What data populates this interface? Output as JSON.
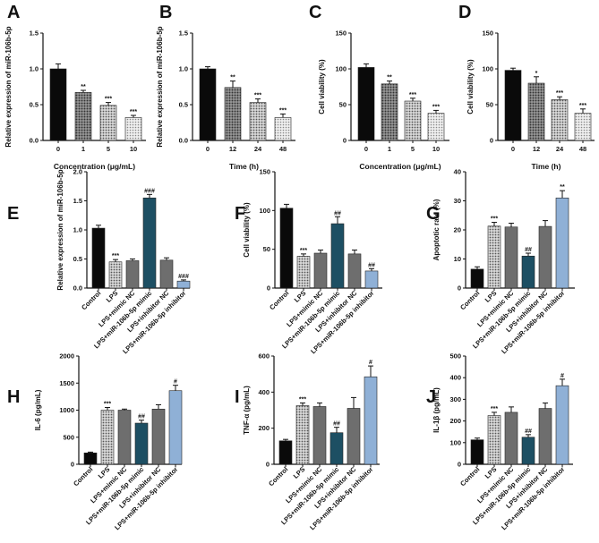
{
  "colors": {
    "black": "#0a0a0a",
    "dotted": "#8e8e8e",
    "dark_dotted": "#6a6a6a",
    "light_dotted": "#c4c4c4",
    "teal": "#1d4f63",
    "gray": "#6e6e6e",
    "blue": "#8fb0d6",
    "axis": "#111111"
  },
  "chart_data": [
    {
      "panel": "A",
      "type": "bar",
      "ylabel": "Relative expression of miR-106b-5p",
      "xlabel": "Concentration (μg/mL)",
      "categories": [
        "0",
        "1",
        "5",
        "10"
      ],
      "values": [
        1.0,
        0.67,
        0.49,
        0.32
      ],
      "errors": [
        0.07,
        0.03,
        0.04,
        0.03
      ],
      "significance": [
        "",
        "**",
        "***",
        "***"
      ],
      "fills": [
        "black",
        "dark_dotted",
        "dotted",
        "light_dotted"
      ],
      "ylim": [
        0,
        1.5
      ],
      "yticks": [
        "0.0",
        "0.5",
        "1.0",
        "1.5"
      ],
      "rotate_labels": false
    },
    {
      "panel": "B",
      "type": "bar",
      "ylabel": "Relative expression of miR-106b-5p",
      "xlabel": "Time (h)",
      "categories": [
        "0",
        "12",
        "24",
        "48"
      ],
      "values": [
        1.0,
        0.74,
        0.53,
        0.32
      ],
      "errors": [
        0.03,
        0.09,
        0.05,
        0.05
      ],
      "significance": [
        "",
        "**",
        "***",
        "***"
      ],
      "fills": [
        "black",
        "dark_dotted",
        "dotted",
        "light_dotted"
      ],
      "ylim": [
        0,
        1.5
      ],
      "yticks": [
        "0.0",
        "0.5",
        "1.0",
        "1.5"
      ],
      "rotate_labels": false
    },
    {
      "panel": "C",
      "type": "bar",
      "ylabel": "Cell viability (%)",
      "xlabel": "Concentration (μg/mL)",
      "categories": [
        "0",
        "1",
        "5",
        "10"
      ],
      "values": [
        102,
        79,
        55,
        38
      ],
      "errors": [
        5,
        4,
        4,
        4
      ],
      "significance": [
        "",
        "**",
        "***",
        "***"
      ],
      "fills": [
        "black",
        "dark_dotted",
        "dotted",
        "light_dotted"
      ],
      "ylim": [
        0,
        150
      ],
      "yticks": [
        "0",
        "50",
        "100",
        "150"
      ],
      "rotate_labels": false
    },
    {
      "panel": "D",
      "type": "bar",
      "ylabel": "Cell viability (%)",
      "xlabel": "Time (h)",
      "categories": [
        "0",
        "12",
        "24",
        "48"
      ],
      "values": [
        98,
        80,
        57,
        38
      ],
      "errors": [
        3,
        9,
        4,
        6
      ],
      "significance": [
        "",
        "*",
        "***",
        "***"
      ],
      "fills": [
        "black",
        "dark_dotted",
        "dotted",
        "light_dotted"
      ],
      "ylim": [
        0,
        150
      ],
      "yticks": [
        "0",
        "50",
        "100",
        "150"
      ],
      "rotate_labels": false
    },
    {
      "panel": "E",
      "type": "bar",
      "ylabel": "Relative expression of miR-106b-5p",
      "xlabel": "",
      "categories": [
        "Control",
        "LPS",
        "LPS+mimic NC",
        "LPS+miR-106b-5p mimic",
        "LPS+inhibitor NC",
        "LPS+miR-106b-5p inhibitor"
      ],
      "values": [
        1.03,
        0.45,
        0.47,
        1.55,
        0.48,
        0.12
      ],
      "errors": [
        0.05,
        0.04,
        0.03,
        0.06,
        0.04,
        0.02
      ],
      "significance": [
        "",
        "***",
        "",
        "###",
        "",
        "###"
      ],
      "fills": [
        "black",
        "dotted",
        "gray",
        "teal",
        "gray",
        "blue"
      ],
      "ylim": [
        0,
        2.0
      ],
      "yticks": [
        "0.0",
        "0.5",
        "1.0",
        "1.5",
        "2.0"
      ],
      "rotate_labels": true
    },
    {
      "panel": "F",
      "type": "bar",
      "ylabel": "Cell viability (%)",
      "xlabel": "",
      "categories": [
        "Control",
        "LPS",
        "LPS+mimic NC",
        "LPS+miR-106b-5p mimic",
        "LPS+inhibitor NC",
        "LPS+miR-106b-5p inhibitor"
      ],
      "values": [
        103,
        41,
        45,
        83,
        44,
        22
      ],
      "errors": [
        5,
        3,
        4,
        9,
        5,
        3
      ],
      "significance": [
        "",
        "***",
        "",
        "##",
        "",
        "##"
      ],
      "fills": [
        "black",
        "dotted",
        "gray",
        "teal",
        "gray",
        "blue"
      ],
      "ylim": [
        0,
        150
      ],
      "yticks": [
        "0",
        "50",
        "100",
        "150"
      ],
      "rotate_labels": true
    },
    {
      "panel": "G",
      "type": "bar",
      "ylabel": "Apoptotic rate (%)",
      "xlabel": "",
      "categories": [
        "Control",
        "LPS",
        "LPS+mimic NC",
        "LPS+miR-106b-5p mimic",
        "LPS+inhibitor NC",
        "LPS+miR-106b-5p inhibitor"
      ],
      "values": [
        6.5,
        21.3,
        21,
        11,
        21.2,
        31
      ],
      "errors": [
        0.8,
        1.3,
        1.3,
        1.0,
        2.0,
        2.5
      ],
      "significance": [
        "",
        "***",
        "",
        "##",
        "",
        "**"
      ],
      "fills": [
        "black",
        "dotted",
        "gray",
        "teal",
        "gray",
        "blue"
      ],
      "ylim": [
        0,
        40
      ],
      "yticks": [
        "0",
        "10",
        "20",
        "30",
        "40"
      ],
      "rotate_labels": true
    },
    {
      "panel": "H",
      "type": "bar",
      "ylabel": "IL-6 (pg/mL)",
      "xlabel": "",
      "categories": [
        "Control",
        "LPS",
        "LPS+mimic NC",
        "LPS+miR-106b-5p mimic",
        "LPS+inhibitor NC",
        "LPS+miR-106b-5p inhibitor"
      ],
      "values": [
        210,
        1000,
        1000,
        760,
        1020,
        1360
      ],
      "errors": [
        15,
        50,
        20,
        55,
        80,
        100
      ],
      "significance": [
        "",
        "***",
        "",
        "##",
        "",
        "#"
      ],
      "fills": [
        "black",
        "dotted",
        "gray",
        "teal",
        "gray",
        "blue"
      ],
      "ylim": [
        0,
        2000
      ],
      "yticks": [
        "0",
        "500",
        "1000",
        "1500",
        "2000"
      ],
      "rotate_labels": true
    },
    {
      "panel": "I",
      "type": "bar",
      "ylabel": "TNF-α (pg/mL)",
      "xlabel": "",
      "categories": [
        "Control",
        "LPS",
        "LPS+mimic NC",
        "LPS+miR-106b-5p mimic",
        "LPS+inhibitor NC",
        "LPS+miR-106b-5p inhibitor"
      ],
      "values": [
        130,
        325,
        320,
        175,
        310,
        485
      ],
      "errors": [
        8,
        15,
        20,
        30,
        60,
        60
      ],
      "significance": [
        "",
        "***",
        "",
        "##",
        "",
        "#"
      ],
      "fills": [
        "black",
        "dotted",
        "gray",
        "teal",
        "gray",
        "blue"
      ],
      "ylim": [
        0,
        600
      ],
      "yticks": [
        "0",
        "200",
        "400",
        "600"
      ],
      "rotate_labels": true
    },
    {
      "panel": "J",
      "type": "bar",
      "ylabel": "IL-1β (pg/mL)",
      "xlabel": "",
      "categories": [
        "Control",
        "LPS",
        "LPS+mimic NC",
        "LPS+miR-106b-5p mimic",
        "LPS+inhibitor NC",
        "LPS+miR-106b-5p inhibitor"
      ],
      "values": [
        113,
        225,
        240,
        125,
        258,
        363
      ],
      "errors": [
        8,
        15,
        25,
        12,
        25,
        30
      ],
      "significance": [
        "",
        "***",
        "",
        "##",
        "",
        "#"
      ],
      "fills": [
        "black",
        "dotted",
        "gray",
        "teal",
        "gray",
        "blue"
      ],
      "ylim": [
        0,
        500
      ],
      "yticks": [
        "0",
        "100",
        "200",
        "300",
        "400",
        "500"
      ],
      "rotate_labels": true
    }
  ]
}
